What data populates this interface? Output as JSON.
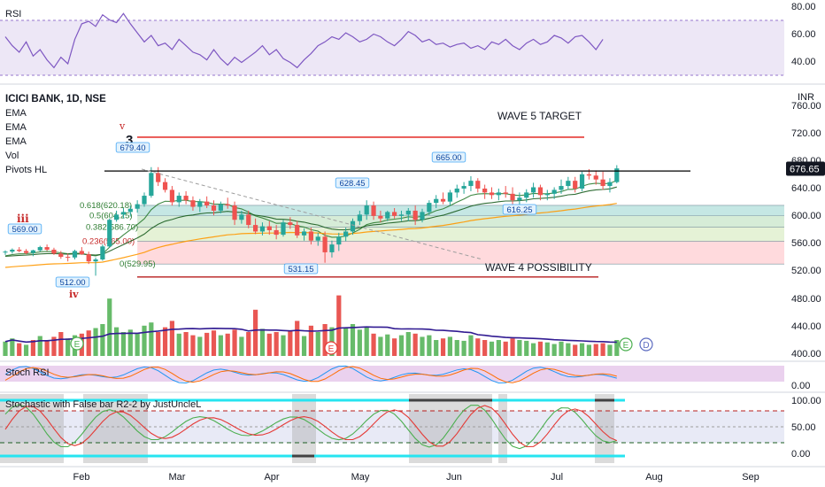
{
  "title": "ICICI BANK, 1D, NSE",
  "indicators_legend": [
    "EMA",
    "EMA",
    "EMA",
    "Vol",
    "Pivots HL"
  ],
  "currency_label": "INR",
  "colors": {
    "up": "#26a69a",
    "down": "#ef5350",
    "volume_up": "#4caf50",
    "volume_down": "#e53935",
    "rsi_line": "#7e57c2",
    "rsi_band": "#ede7f6",
    "stoch_k": "#2196f3",
    "stoch_d": "#ff6d00",
    "stoch_band": "#e1bee7",
    "falsebar_k": "#4caf50",
    "falsebar_d": "#e53935",
    "target_line": "#e53935",
    "resistance_line": "#000000",
    "price_tag": "#131722"
  },
  "chart_data": {
    "type": "candlestick",
    "x_labels": [
      "Feb",
      "Mar",
      "Apr",
      "May",
      "Jun",
      "Jul",
      "Aug",
      "Sep"
    ],
    "price_axis": {
      "ticks": [
        "760.00",
        "720.00",
        "680.00",
        "640.00",
        "600.00",
        "560.00",
        "520.00",
        "480.00",
        "440.00",
        "400.00"
      ],
      "ylim": [
        394,
        774
      ],
      "last_price": "676.65"
    },
    "rsi_panel": {
      "label": "RSI",
      "ticks": [
        "80.00",
        "60.00",
        "40.00"
      ],
      "ylim": [
        30,
        85
      ],
      "values": [
        62,
        55,
        50,
        58,
        47,
        52,
        44,
        38,
        46,
        41,
        60,
        72,
        74,
        70,
        79,
        75,
        73,
        80,
        72,
        65,
        58,
        63,
        55,
        57,
        52,
        60,
        55,
        50,
        48,
        44,
        52,
        45,
        40,
        46,
        42,
        46,
        50,
        55,
        48,
        52,
        45,
        42,
        38,
        44,
        49,
        55,
        58,
        62,
        60,
        65,
        62,
        58,
        60,
        64,
        62,
        58,
        55,
        60,
        66,
        63,
        58,
        60,
        56,
        57,
        54,
        56,
        57,
        53,
        55,
        52,
        58,
        56,
        60,
        55,
        52,
        57,
        60,
        56,
        58,
        63,
        61,
        57,
        62,
        63,
        58,
        52,
        60
      ]
    },
    "stoch_rsi_panel": {
      "label": "Stoch RSI",
      "ticks": [
        "0.00"
      ]
    },
    "false_bar_panel": {
      "label": "Stochastic with False bar R2-2 by JustUncleL",
      "ticks": [
        "100.00",
        "50.00",
        "0.00"
      ]
    },
    "candles": [
      [
        548,
        551,
        544,
        549
      ],
      [
        549,
        554,
        546,
        552
      ],
      [
        552,
        556,
        548,
        550
      ],
      [
        550,
        553,
        545,
        547
      ],
      [
        547,
        552,
        542,
        551
      ],
      [
        551,
        558,
        549,
        556
      ],
      [
        556,
        560,
        550,
        552
      ],
      [
        552,
        555,
        544,
        546
      ],
      [
        546,
        550,
        538,
        541
      ],
      [
        541,
        546,
        534,
        540
      ],
      [
        540,
        552,
        537,
        550
      ],
      [
        550,
        556,
        544,
        545
      ],
      [
        545,
        549,
        530,
        534
      ],
      [
        534,
        540,
        512,
        537
      ],
      [
        537,
        560,
        535,
        557
      ],
      [
        557,
        600,
        555,
        598
      ],
      [
        598,
        612,
        595,
        606
      ],
      [
        606,
        616,
        600,
        610
      ],
      [
        610,
        620,
        603,
        615
      ],
      [
        615,
        628,
        609,
        622
      ],
      [
        622,
        640,
        618,
        635
      ],
      [
        635,
        679,
        632,
        670
      ],
      [
        670,
        679,
        650,
        656
      ],
      [
        656,
        662,
        640,
        644
      ],
      [
        644,
        650,
        620,
        625
      ],
      [
        625,
        640,
        618,
        635
      ],
      [
        635,
        642,
        622,
        628
      ],
      [
        628,
        634,
        612,
        618
      ],
      [
        618,
        630,
        610,
        626
      ],
      [
        626,
        634,
        616,
        620
      ],
      [
        620,
        628,
        605,
        612
      ],
      [
        612,
        626,
        608,
        622
      ],
      [
        622,
        632,
        615,
        620
      ],
      [
        620,
        626,
        590,
        598
      ],
      [
        598,
        612,
        592,
        606
      ],
      [
        606,
        612,
        585,
        590
      ],
      [
        590,
        600,
        576,
        580
      ],
      [
        580,
        594,
        574,
        588
      ],
      [
        588,
        596,
        575,
        582
      ],
      [
        582,
        590,
        568,
        575
      ],
      [
        575,
        598,
        572,
        594
      ],
      [
        594,
        602,
        584,
        590
      ],
      [
        590,
        596,
        570,
        574
      ],
      [
        574,
        585,
        566,
        580
      ],
      [
        580,
        586,
        560,
        566
      ],
      [
        566,
        578,
        558,
        572
      ],
      [
        572,
        580,
        532,
        548
      ],
      [
        548,
        566,
        540,
        560
      ],
      [
        560,
        578,
        550,
        572
      ],
      [
        572,
        586,
        565,
        580
      ],
      [
        580,
        600,
        575,
        596
      ],
      [
        596,
        612,
        590,
        606
      ],
      [
        606,
        628,
        598,
        620
      ],
      [
        620,
        626,
        598,
        604
      ],
      [
        604,
        612,
        594,
        600
      ],
      [
        600,
        612,
        596,
        610
      ],
      [
        610,
        616,
        600,
        604
      ],
      [
        604,
        612,
        596,
        606
      ],
      [
        606,
        616,
        596,
        612
      ],
      [
        612,
        620,
        590,
        598
      ],
      [
        598,
        615,
        594,
        610
      ],
      [
        610,
        628,
        605,
        624
      ],
      [
        624,
        636,
        616,
        630
      ],
      [
        630,
        640,
        622,
        626
      ],
      [
        626,
        644,
        620,
        640
      ],
      [
        640,
        652,
        632,
        646
      ],
      [
        646,
        656,
        638,
        650
      ],
      [
        650,
        665,
        642,
        658
      ],
      [
        658,
        662,
        640,
        646
      ],
      [
        646,
        652,
        630,
        640
      ],
      [
        640,
        648,
        630,
        636
      ],
      [
        636,
        646,
        628,
        640
      ],
      [
        640,
        650,
        632,
        638
      ],
      [
        638,
        648,
        620,
        628
      ],
      [
        628,
        640,
        616,
        632
      ],
      [
        632,
        645,
        625,
        640
      ],
      [
        640,
        655,
        632,
        648
      ],
      [
        648,
        652,
        628,
        636
      ],
      [
        636,
        644,
        628,
        638
      ],
      [
        638,
        648,
        630,
        644
      ],
      [
        644,
        660,
        638,
        650
      ],
      [
        650,
        664,
        644,
        658
      ],
      [
        658,
        664,
        640,
        646
      ],
      [
        646,
        672,
        642,
        668
      ],
      [
        668,
        676,
        660,
        666
      ],
      [
        666,
        674,
        652,
        660
      ],
      [
        660,
        672,
        644,
        650
      ],
      [
        650,
        662,
        640,
        656
      ],
      [
        656,
        682,
        654,
        677
      ]
    ],
    "volumes": [
      [
        18,
        1
      ],
      [
        22,
        1
      ],
      [
        16,
        0
      ],
      [
        14,
        1
      ],
      [
        20,
        0
      ],
      [
        25,
        1
      ],
      [
        19,
        0
      ],
      [
        24,
        0
      ],
      [
        30,
        0
      ],
      [
        22,
        1
      ],
      [
        26,
        1
      ],
      [
        28,
        0
      ],
      [
        32,
        0
      ],
      [
        35,
        1
      ],
      [
        40,
        1
      ],
      [
        72,
        1
      ],
      [
        36,
        1
      ],
      [
        30,
        1
      ],
      [
        33,
        1
      ],
      [
        28,
        1
      ],
      [
        38,
        1
      ],
      [
        42,
        1
      ],
      [
        30,
        0
      ],
      [
        36,
        0
      ],
      [
        44,
        0
      ],
      [
        28,
        1
      ],
      [
        30,
        0
      ],
      [
        26,
        0
      ],
      [
        24,
        1
      ],
      [
        29,
        0
      ],
      [
        32,
        0
      ],
      [
        26,
        1
      ],
      [
        28,
        0
      ],
      [
        33,
        0
      ],
      [
        24,
        1
      ],
      [
        30,
        0
      ],
      [
        58,
        0
      ],
      [
        34,
        1
      ],
      [
        28,
        0
      ],
      [
        30,
        0
      ],
      [
        26,
        1
      ],
      [
        32,
        0
      ],
      [
        44,
        0
      ],
      [
        25,
        1
      ],
      [
        38,
        0
      ],
      [
        30,
        1
      ],
      [
        40,
        0
      ],
      [
        36,
        1
      ],
      [
        76,
        0
      ],
      [
        36,
        1
      ],
      [
        40,
        1
      ],
      [
        33,
        1
      ],
      [
        36,
        1
      ],
      [
        28,
        0
      ],
      [
        24,
        1
      ],
      [
        27,
        1
      ],
      [
        22,
        0
      ],
      [
        26,
        1
      ],
      [
        30,
        1
      ],
      [
        28,
        0
      ],
      [
        24,
        1
      ],
      [
        26,
        1
      ],
      [
        20,
        1
      ],
      [
        22,
        0
      ],
      [
        24,
        1
      ],
      [
        20,
        1
      ],
      [
        19,
        1
      ],
      [
        26,
        1
      ],
      [
        22,
        0
      ],
      [
        20,
        0
      ],
      [
        18,
        1
      ],
      [
        20,
        1
      ],
      [
        18,
        0
      ],
      [
        22,
        0
      ],
      [
        20,
        1
      ],
      [
        19,
        1
      ],
      [
        16,
        1
      ],
      [
        18,
        0
      ],
      [
        17,
        1
      ],
      [
        15,
        1
      ],
      [
        18,
        1
      ],
      [
        16,
        1
      ],
      [
        14,
        0
      ],
      [
        16,
        1
      ],
      [
        14,
        1
      ],
      [
        15,
        0
      ],
      [
        16,
        0
      ],
      [
        14,
        1
      ],
      [
        20,
        1
      ]
    ],
    "annotations": {
      "wave_labels": [
        "iii",
        "iv",
        "v",
        "3"
      ],
      "price_labels": [
        "569.00",
        "512.00",
        "679.40",
        "628.45",
        "531.15",
        "665.00",
        "616.25"
      ],
      "fib_labels": [
        "0.618(620.18)",
        "0.5(604.25)",
        "0.382(586.70)",
        "0.236(565.00)",
        "0(529.95)"
      ],
      "fib_levels": [
        620.18,
        604.25,
        586.7,
        565.0,
        529.95
      ],
      "text": [
        "WAVE 5 TARGET",
        "WAVE 4 POSSIBILITY"
      ],
      "wave5_target": 725,
      "wave4_floor": 510,
      "resistance": 673,
      "markers": [
        "E",
        "E",
        "E",
        "D"
      ]
    }
  }
}
